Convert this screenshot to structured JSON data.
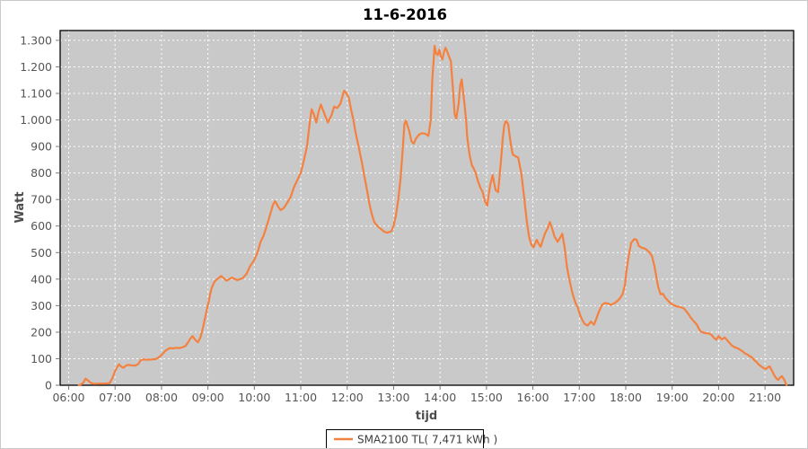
{
  "chart_data": {
    "type": "line",
    "title": "11-6-2016",
    "xlabel": "tijd",
    "ylabel": "Watt",
    "legend_position": "bottom-center",
    "grid": "on",
    "xlim_minutes": [
      349,
      1297
    ],
    "ylim": [
      0,
      1337
    ],
    "x_ticks": [
      {
        "m": 360,
        "label": "06:00"
      },
      {
        "m": 420,
        "label": "07:00"
      },
      {
        "m": 480,
        "label": "08:00"
      },
      {
        "m": 540,
        "label": "09:00"
      },
      {
        "m": 600,
        "label": "10:00"
      },
      {
        "m": 660,
        "label": "11:00"
      },
      {
        "m": 720,
        "label": "12:00"
      },
      {
        "m": 780,
        "label": "13:00"
      },
      {
        "m": 840,
        "label": "14:00"
      },
      {
        "m": 900,
        "label": "15:00"
      },
      {
        "m": 960,
        "label": "16:00"
      },
      {
        "m": 1020,
        "label": "17:00"
      },
      {
        "m": 1080,
        "label": "18:00"
      },
      {
        "m": 1140,
        "label": "19:00"
      },
      {
        "m": 1200,
        "label": "20:00"
      },
      {
        "m": 1260,
        "label": "21:00"
      }
    ],
    "y_ticks": [
      {
        "v": 0,
        "label": "0"
      },
      {
        "v": 100,
        "label": "100"
      },
      {
        "v": 200,
        "label": "200"
      },
      {
        "v": 300,
        "label": "300"
      },
      {
        "v": 400,
        "label": "400"
      },
      {
        "v": 500,
        "label": "500"
      },
      {
        "v": 600,
        "label": "600"
      },
      {
        "v": 700,
        "label": "700"
      },
      {
        "v": 800,
        "label": "800"
      },
      {
        "v": 900,
        "label": "900"
      },
      {
        "v": 1000,
        "label": "1.000"
      },
      {
        "v": 1100,
        "label": "1.100"
      },
      {
        "v": 1200,
        "label": "1.200"
      },
      {
        "v": 1300,
        "label": "1.300"
      }
    ],
    "colors": {
      "plot_background": "#c9c9c9",
      "gridline": "#ffffff",
      "plot_border": "#000000",
      "tick_mark": "#7a7a7a",
      "series_line": "#f4813f",
      "legend_background": "#ffffff",
      "legend_border": "#000000"
    },
    "series": [
      {
        "name": "SMA2100 TL( 7,471 kWh )",
        "color": "#f4813f",
        "points_time_watt": [
          [
            373,
            0
          ],
          [
            376,
            3
          ],
          [
            379,
            10
          ],
          [
            382,
            25
          ],
          [
            385,
            18
          ],
          [
            389,
            8
          ],
          [
            393,
            5
          ],
          [
            400,
            6
          ],
          [
            408,
            6
          ],
          [
            413,
            8
          ],
          [
            417,
            30
          ],
          [
            420,
            54
          ],
          [
            423,
            70
          ],
          [
            425,
            79
          ],
          [
            428,
            70
          ],
          [
            431,
            66
          ],
          [
            434,
            74
          ],
          [
            437,
            77
          ],
          [
            441,
            75
          ],
          [
            446,
            74
          ],
          [
            450,
            80
          ],
          [
            453,
            94
          ],
          [
            457,
            97
          ],
          [
            462,
            96
          ],
          [
            467,
            97
          ],
          [
            472,
            98
          ],
          [
            476,
            104
          ],
          [
            479,
            111
          ],
          [
            482,
            120
          ],
          [
            485,
            130
          ],
          [
            488,
            136
          ],
          [
            491,
            140
          ],
          [
            495,
            139
          ],
          [
            499,
            141
          ],
          [
            503,
            140
          ],
          [
            507,
            143
          ],
          [
            511,
            148
          ],
          [
            514,
            160
          ],
          [
            517,
            175
          ],
          [
            520,
            185
          ],
          [
            524,
            170
          ],
          [
            527,
            162
          ],
          [
            530,
            178
          ],
          [
            533,
            210
          ],
          [
            536,
            250
          ],
          [
            539,
            290
          ],
          [
            541,
            316
          ],
          [
            543,
            345
          ],
          [
            545,
            368
          ],
          [
            548,
            388
          ],
          [
            550,
            395
          ],
          [
            557,
            412
          ],
          [
            564,
            394
          ],
          [
            571,
            406
          ],
          [
            578,
            396
          ],
          [
            585,
            404
          ],
          [
            590,
            420
          ],
          [
            594,
            446
          ],
          [
            600,
            473
          ],
          [
            604,
            500
          ],
          [
            608,
            540
          ],
          [
            612,
            565
          ],
          [
            616,
            600
          ],
          [
            620,
            640
          ],
          [
            624,
            680
          ],
          [
            627,
            694
          ],
          [
            631,
            672
          ],
          [
            634,
            660
          ],
          [
            638,
            668
          ],
          [
            643,
            690
          ],
          [
            647,
            710
          ],
          [
            651,
            745
          ],
          [
            655,
            770
          ],
          [
            660,
            800
          ],
          [
            664,
            848
          ],
          [
            668,
            900
          ],
          [
            672,
            1000
          ],
          [
            674,
            1040
          ],
          [
            677,
            1020
          ],
          [
            680,
            990
          ],
          [
            683,
            1030
          ],
          [
            686,
            1058
          ],
          [
            691,
            1020
          ],
          [
            695,
            990
          ],
          [
            700,
            1020
          ],
          [
            703,
            1050
          ],
          [
            707,
            1045
          ],
          [
            711,
            1060
          ],
          [
            714,
            1090
          ],
          [
            716,
            1110
          ],
          [
            719,
            1100
          ],
          [
            722,
            1085
          ],
          [
            725,
            1040
          ],
          [
            728,
            1000
          ],
          [
            731,
            950
          ],
          [
            735,
            895
          ],
          [
            739,
            840
          ],
          [
            742,
            790
          ],
          [
            746,
            730
          ],
          [
            749,
            680
          ],
          [
            752,
            643
          ],
          [
            755,
            615
          ],
          [
            759,
            600
          ],
          [
            764,
            588
          ],
          [
            768,
            578
          ],
          [
            772,
            575
          ],
          [
            777,
            580
          ],
          [
            780,
            600
          ],
          [
            783,
            640
          ],
          [
            786,
            700
          ],
          [
            789,
            780
          ],
          [
            792,
            900
          ],
          [
            794,
            985
          ],
          [
            796,
            997
          ],
          [
            800,
            960
          ],
          [
            803,
            920
          ],
          [
            806,
            911
          ],
          [
            809,
            930
          ],
          [
            813,
            945
          ],
          [
            817,
            950
          ],
          [
            821,
            948
          ],
          [
            825,
            940
          ],
          [
            828,
            1000
          ],
          [
            830,
            1150
          ],
          [
            833,
            1279
          ],
          [
            835,
            1250
          ],
          [
            837,
            1245
          ],
          [
            839,
            1265
          ],
          [
            841,
            1240
          ],
          [
            843,
            1228
          ],
          [
            845,
            1255
          ],
          [
            847,
            1272
          ],
          [
            849,
            1260
          ],
          [
            852,
            1235
          ],
          [
            854,
            1222
          ],
          [
            857,
            1103
          ],
          [
            859,
            1020
          ],
          [
            861,
            1005
          ],
          [
            864,
            1060
          ],
          [
            866,
            1130
          ],
          [
            868,
            1153
          ],
          [
            870,
            1100
          ],
          [
            872,
            1050
          ],
          [
            874,
            985
          ],
          [
            875,
            940
          ],
          [
            878,
            871
          ],
          [
            881,
            830
          ],
          [
            883,
            820
          ],
          [
            886,
            800
          ],
          [
            889,
            769
          ],
          [
            892,
            745
          ],
          [
            895,
            728
          ],
          [
            898,
            694
          ],
          [
            901,
            677
          ],
          [
            903,
            720
          ],
          [
            905,
            758
          ],
          [
            908,
            792
          ],
          [
            910,
            760
          ],
          [
            912,
            735
          ],
          [
            915,
            728
          ],
          [
            917,
            790
          ],
          [
            919,
            854
          ],
          [
            921,
            930
          ],
          [
            923,
            980
          ],
          [
            925,
            996
          ],
          [
            928,
            985
          ],
          [
            930,
            940
          ],
          [
            932,
            900
          ],
          [
            934,
            870
          ],
          [
            937,
            864
          ],
          [
            941,
            858
          ],
          [
            945,
            800
          ],
          [
            949,
            700
          ],
          [
            952,
            620
          ],
          [
            955,
            560
          ],
          [
            958,
            530
          ],
          [
            961,
            520
          ],
          [
            963,
            535
          ],
          [
            965,
            548
          ],
          [
            968,
            530
          ],
          [
            970,
            522
          ],
          [
            973,
            550
          ],
          [
            976,
            575
          ],
          [
            979,
            590
          ],
          [
            982,
            615
          ],
          [
            985,
            590
          ],
          [
            988,
            560
          ],
          [
            992,
            541
          ],
          [
            995,
            555
          ],
          [
            998,
            571
          ],
          [
            1001,
            520
          ],
          [
            1004,
            446
          ],
          [
            1007,
            400
          ],
          [
            1010,
            360
          ],
          [
            1012,
            337
          ],
          [
            1015,
            310
          ],
          [
            1018,
            293
          ],
          [
            1021,
            265
          ],
          [
            1024,
            245
          ],
          [
            1027,
            231
          ],
          [
            1031,
            225
          ],
          [
            1035,
            240
          ],
          [
            1039,
            228
          ],
          [
            1042,
            250
          ],
          [
            1045,
            275
          ],
          [
            1049,
            302
          ],
          [
            1053,
            310
          ],
          [
            1057,
            308
          ],
          [
            1061,
            303
          ],
          [
            1066,
            310
          ],
          [
            1070,
            320
          ],
          [
            1073,
            330
          ],
          [
            1076,
            344
          ],
          [
            1079,
            378
          ],
          [
            1081,
            430
          ],
          [
            1083,
            473
          ],
          [
            1087,
            537
          ],
          [
            1091,
            551
          ],
          [
            1094,
            548
          ],
          [
            1097,
            525
          ],
          [
            1101,
            518
          ],
          [
            1105,
            515
          ],
          [
            1108,
            508
          ],
          [
            1111,
            500
          ],
          [
            1114,
            486
          ],
          [
            1117,
            450
          ],
          [
            1119,
            418
          ],
          [
            1122,
            370
          ],
          [
            1125,
            343
          ],
          [
            1128,
            345
          ],
          [
            1131,
            330
          ],
          [
            1135,
            318
          ],
          [
            1138,
            308
          ],
          [
            1142,
            302
          ],
          [
            1146,
            297
          ],
          [
            1151,
            294
          ],
          [
            1155,
            290
          ],
          [
            1158,
            280
          ],
          [
            1161,
            268
          ],
          [
            1164,
            255
          ],
          [
            1168,
            241
          ],
          [
            1172,
            228
          ],
          [
            1175,
            210
          ],
          [
            1178,
            201
          ],
          [
            1182,
            197
          ],
          [
            1187,
            195
          ],
          [
            1191,
            190
          ],
          [
            1194,
            178
          ],
          [
            1197,
            172
          ],
          [
            1200,
            185
          ],
          [
            1204,
            173
          ],
          [
            1208,
            180
          ],
          [
            1211,
            170
          ],
          [
            1214,
            160
          ],
          [
            1217,
            150
          ],
          [
            1221,
            143
          ],
          [
            1225,
            139
          ],
          [
            1228,
            133
          ],
          [
            1231,
            128
          ],
          [
            1234,
            120
          ],
          [
            1237,
            116
          ],
          [
            1240,
            110
          ],
          [
            1243,
            105
          ],
          [
            1246,
            95
          ],
          [
            1249,
            88
          ],
          [
            1252,
            78
          ],
          [
            1255,
            71
          ],
          [
            1258,
            65
          ],
          [
            1261,
            61
          ],
          [
            1264,
            68
          ],
          [
            1266,
            71
          ],
          [
            1269,
            55
          ],
          [
            1272,
            37
          ],
          [
            1275,
            25
          ],
          [
            1277,
            20
          ],
          [
            1280,
            30
          ],
          [
            1282,
            34
          ],
          [
            1285,
            20
          ],
          [
            1287,
            5
          ],
          [
            1288,
            0
          ]
        ]
      }
    ]
  }
}
